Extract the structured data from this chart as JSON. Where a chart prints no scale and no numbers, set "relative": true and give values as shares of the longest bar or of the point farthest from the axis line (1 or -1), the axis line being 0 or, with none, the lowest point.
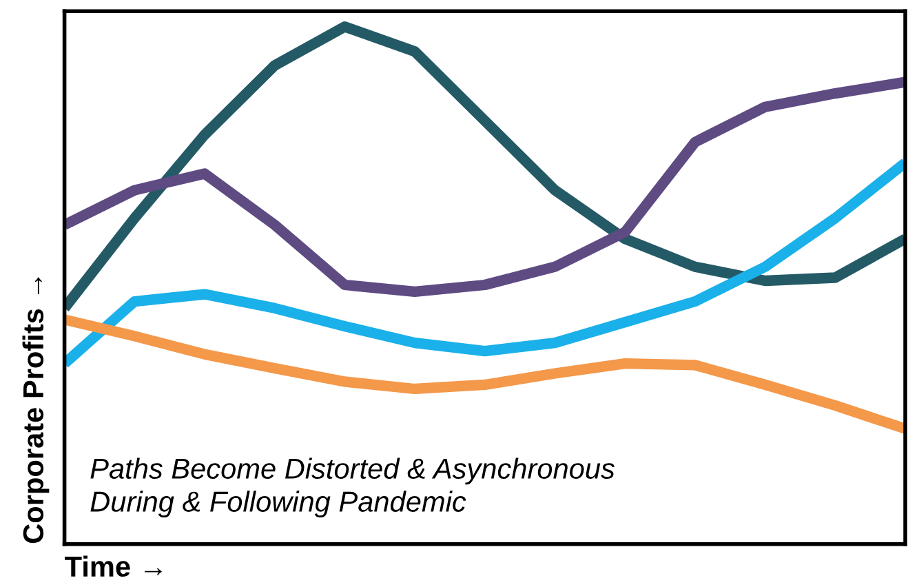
{
  "chart_data": {
    "type": "line",
    "relative": true,
    "xlabel": "Time →",
    "ylabel": "Corporate Profits →",
    "annotations": [
      "Paths Become Distorted & Asynchronous\nDuring & Following Pandemic"
    ],
    "categories": [
      null,
      null,
      null,
      null,
      null,
      null,
      null,
      null,
      null,
      null,
      null,
      null,
      null
    ],
    "series": [
      {
        "color": "#245a66",
        "values": [
          0.456,
          0.63,
          0.791,
          0.925,
          1,
          0.952,
          0.818,
          0.684,
          0.59,
          0.536,
          0.509,
          0.515,
          0.59
        ]
      },
      {
        "color": "#5e4b82",
        "values": [
          0.617,
          0.684,
          0.716,
          0.617,
          0.501,
          0.488,
          0.501,
          0.536,
          0.603,
          0.777,
          0.845,
          0.871,
          0.893
        ]
      },
      {
        "color": "#1ab0ea",
        "values": [
          0.349,
          0.469,
          0.483,
          0.456,
          0.421,
          0.389,
          0.373,
          0.389,
          0.429,
          0.469,
          0.536,
          0.63,
          0.737
        ]
      },
      {
        "color": "#f4984a",
        "values": [
          0.434,
          0.402,
          0.367,
          0.34,
          0.314,
          0.3,
          0.308,
          0.33,
          0.349,
          0.346,
          0.308,
          0.268,
          0.223
        ]
      }
    ],
    "legend": false
  }
}
